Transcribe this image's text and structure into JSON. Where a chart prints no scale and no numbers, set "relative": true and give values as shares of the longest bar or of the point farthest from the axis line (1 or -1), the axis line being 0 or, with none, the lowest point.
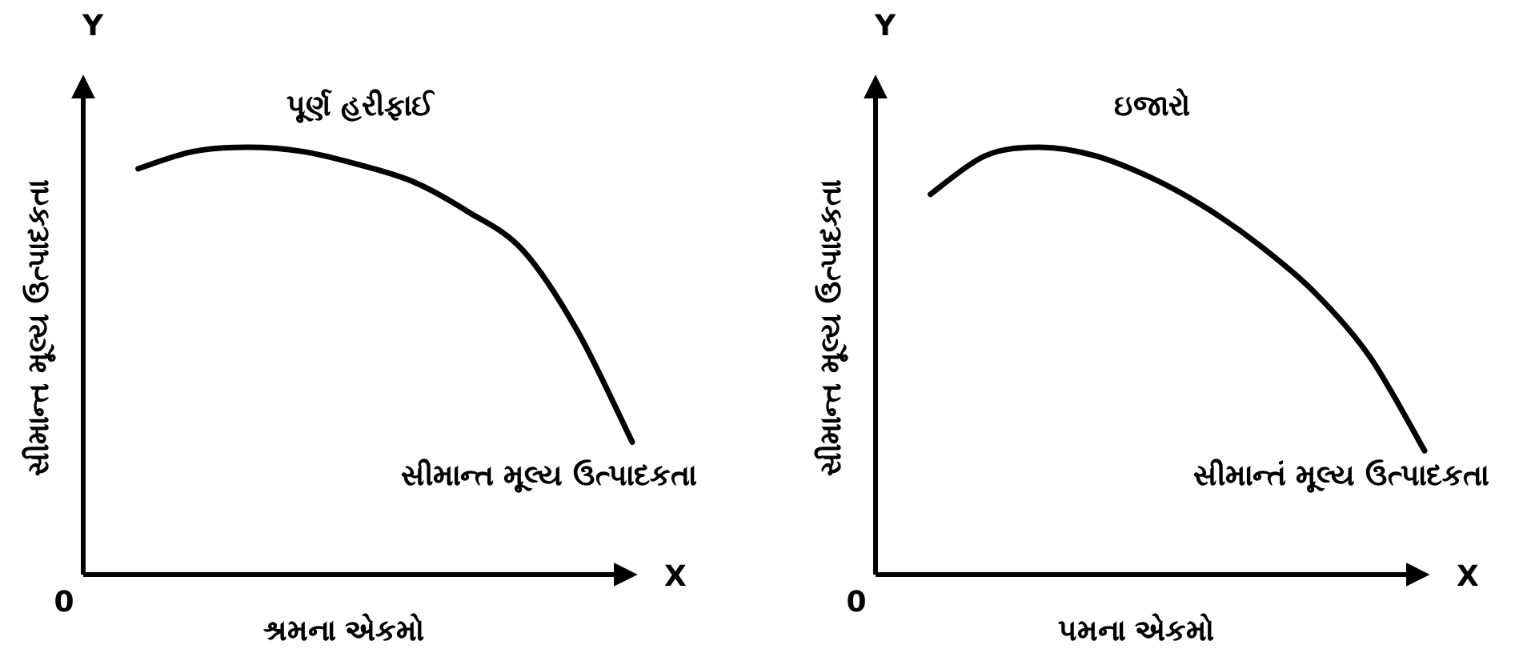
{
  "chart_data": [
    {
      "type": "line",
      "title": "પૂર્ણ હરીફાઈ",
      "xlabel": "શ્રમના એકમો",
      "ylabel": "સીમાન્ત મૂલ્ય ઉત્પાદકતા",
      "relative": true,
      "categories": [
        null,
        null,
        null,
        null,
        null,
        null,
        null,
        null,
        null,
        null,
        null
      ],
      "series": [
        {
          "color": "#000000",
          "values": [
            null,
            0.95,
            0.99,
            1.0,
            0.99,
            0.96,
            0.92,
            0.85,
            0.76,
            0.57,
            0.31
          ]
        }
      ],
      "annotations": [
        "સીમાન્ત મૂલ્ય ઉત્પાદકતા",
        "Y",
        "X",
        "0"
      ]
    },
    {
      "type": "line",
      "title": "ઇજારો",
      "xlabel": "પમના એકમો",
      "ylabel": "સીમાન્ત મૂલ્ય ઉત્પાદકતા",
      "relative": true,
      "categories": [
        null,
        null,
        null,
        null,
        null,
        null,
        null,
        null,
        null,
        null,
        null
      ],
      "series": [
        {
          "color": "#000000",
          "values": [
            null,
            0.89,
            0.98,
            1.0,
            0.98,
            0.93,
            0.86,
            0.77,
            0.66,
            0.51,
            0.29
          ]
        }
      ],
      "annotations": [
        "સીમાન્તં મૂલ્ય ઉત્પાદકતા",
        "Y",
        "X",
        "0"
      ]
    }
  ]
}
